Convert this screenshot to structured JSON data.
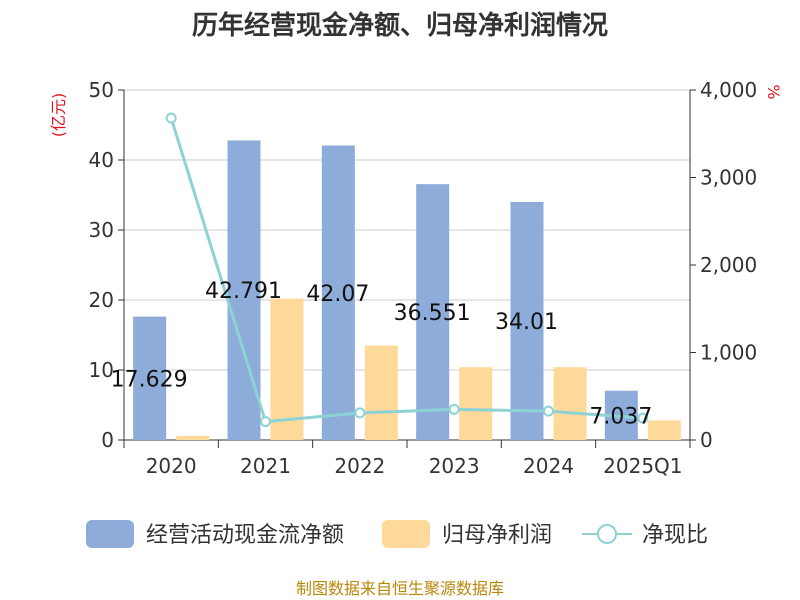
{
  "chart_data": {
    "type": "bar+line",
    "title": "历年经营现金净额、归母净利润情况",
    "categories": [
      "2020",
      "2021",
      "2022",
      "2023",
      "2024",
      "2025Q1"
    ],
    "series": [
      {
        "name": "经营活动现金流净额",
        "type": "bar",
        "axis": "left",
        "color": "#8eacd9",
        "values": [
          17.629,
          42.791,
          42.07,
          36.551,
          34.01,
          7.037
        ],
        "labels": [
          "17.629",
          "42.791",
          "42.07",
          "36.551",
          "34.01",
          "7.037"
        ]
      },
      {
        "name": "归母净利润",
        "type": "bar",
        "axis": "left",
        "color": "#ffd99a",
        "values": [
          0.6,
          20.2,
          13.5,
          10.4,
          10.4,
          2.8
        ]
      },
      {
        "name": "净现比",
        "type": "line",
        "axis": "right",
        "color": "#8dd3d6",
        "values": [
          3680,
          210,
          310,
          350,
          330,
          250
        ]
      }
    ],
    "yleft": {
      "unit": "(亿元)",
      "ylim": [
        0,
        50
      ],
      "ticks": [
        "0",
        "10",
        "20",
        "30",
        "40",
        "50"
      ]
    },
    "yright": {
      "unit": "%",
      "ylim": [
        0,
        4000
      ],
      "ticks": [
        "0",
        "1,000",
        "2,000",
        "3,000",
        "4,000"
      ]
    }
  },
  "source": "制图数据来自恒生聚源数据库"
}
